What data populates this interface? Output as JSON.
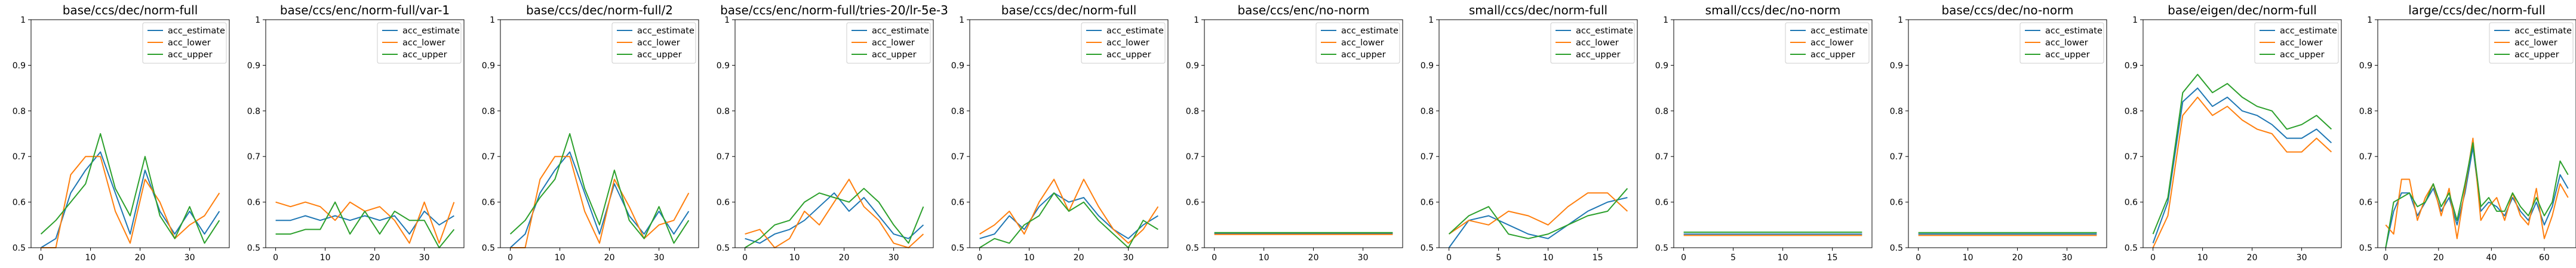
{
  "chart_data": {
    "type": "line",
    "ylim": [
      0.5,
      1.0
    ],
    "yticks": [
      0.5,
      0.6,
      0.7,
      0.8,
      0.9,
      1.0
    ],
    "grid": false,
    "legend_position": "top-right",
    "colors": {
      "acc_estimate": "#1f77b4",
      "acc_lower": "#ff7f0e",
      "acc_upper": "#2ca02c"
    },
    "panels": [
      {
        "title": "base/ccs/dec/norm-full",
        "xlim": [
          -2,
          38
        ],
        "xticks": [
          0,
          10,
          20,
          30
        ],
        "x": [
          0,
          3,
          6,
          9,
          12,
          15,
          18,
          21,
          24,
          27,
          30,
          33,
          36
        ],
        "series": [
          {
            "name": "acc_estimate",
            "values": [
              0.5,
              0.52,
              0.62,
              0.67,
              0.71,
              0.62,
              0.53,
              0.67,
              0.58,
              0.53,
              0.58,
              0.53,
              0.58
            ]
          },
          {
            "name": "acc_lower",
            "values": [
              0.5,
              0.5,
              0.66,
              0.7,
              0.7,
              0.58,
              0.51,
              0.65,
              0.6,
              0.52,
              0.55,
              0.57,
              0.62
            ]
          },
          {
            "name": "acc_upper",
            "values": [
              0.53,
              0.56,
              0.6,
              0.64,
              0.75,
              0.63,
              0.57,
              0.7,
              0.57,
              0.52,
              0.59,
              0.51,
              0.56
            ]
          }
        ]
      },
      {
        "title": "base/ccs/enc/norm-full/var-1",
        "xlim": [
          -2,
          38
        ],
        "xticks": [
          0,
          10,
          20,
          30
        ],
        "x": [
          0,
          3,
          6,
          9,
          12,
          15,
          18,
          21,
          24,
          27,
          30,
          33,
          36
        ],
        "series": [
          {
            "name": "acc_estimate",
            "values": [
              0.56,
              0.56,
              0.57,
              0.56,
              0.57,
              0.56,
              0.57,
              0.56,
              0.57,
              0.53,
              0.58,
              0.55,
              0.57
            ]
          },
          {
            "name": "acc_lower",
            "values": [
              0.6,
              0.59,
              0.6,
              0.59,
              0.56,
              0.6,
              0.58,
              0.59,
              0.56,
              0.51,
              0.6,
              0.51,
              0.6
            ]
          },
          {
            "name": "acc_upper",
            "values": [
              0.53,
              0.53,
              0.54,
              0.54,
              0.6,
              0.53,
              0.58,
              0.53,
              0.58,
              0.56,
              0.56,
              0.5,
              0.54
            ]
          }
        ]
      },
      {
        "title": "base/ccs/dec/norm-full/2",
        "xlim": [
          -2,
          38
        ],
        "xticks": [
          0,
          10,
          20,
          30
        ],
        "x": [
          0,
          3,
          6,
          9,
          12,
          15,
          18,
          21,
          24,
          27,
          30,
          33,
          36
        ],
        "series": [
          {
            "name": "acc_estimate",
            "values": [
              0.5,
              0.53,
              0.62,
              0.67,
              0.71,
              0.62,
              0.53,
              0.64,
              0.57,
              0.53,
              0.58,
              0.53,
              0.58
            ]
          },
          {
            "name": "acc_lower",
            "values": [
              0.5,
              0.5,
              0.65,
              0.7,
              0.7,
              0.58,
              0.51,
              0.65,
              0.59,
              0.52,
              0.55,
              0.56,
              0.62
            ]
          },
          {
            "name": "acc_upper",
            "values": [
              0.53,
              0.56,
              0.61,
              0.65,
              0.75,
              0.63,
              0.55,
              0.67,
              0.56,
              0.52,
              0.59,
              0.51,
              0.56
            ]
          }
        ]
      },
      {
        "title": "base/ccs/enc/norm-full/tries-20/lr-5e-3",
        "xlim": [
          -2,
          38
        ],
        "xticks": [
          0,
          10,
          20,
          30
        ],
        "x": [
          0,
          3,
          6,
          9,
          12,
          15,
          18,
          21,
          24,
          27,
          30,
          33,
          36
        ],
        "series": [
          {
            "name": "acc_estimate",
            "values": [
              0.52,
              0.51,
              0.53,
              0.54,
              0.56,
              0.59,
              0.62,
              0.58,
              0.61,
              0.57,
              0.53,
              0.52,
              0.55
            ]
          },
          {
            "name": "acc_lower",
            "values": [
              0.53,
              0.54,
              0.5,
              0.52,
              0.58,
              0.55,
              0.6,
              0.65,
              0.59,
              0.56,
              0.51,
              0.5,
              0.53
            ]
          },
          {
            "name": "acc_upper",
            "values": [
              0.5,
              0.52,
              0.55,
              0.56,
              0.6,
              0.62,
              0.61,
              0.6,
              0.63,
              0.6,
              0.55,
              0.51,
              0.59
            ]
          }
        ]
      },
      {
        "title": "base/ccs/dec/norm-full",
        "xlim": [
          -2,
          38
        ],
        "xticks": [
          0,
          10,
          20,
          30
        ],
        "x": [
          0,
          3,
          6,
          9,
          12,
          15,
          18,
          21,
          24,
          27,
          30,
          33,
          36
        ],
        "series": [
          {
            "name": "acc_estimate",
            "values": [
              0.52,
              0.53,
              0.57,
              0.54,
              0.59,
              0.62,
              0.6,
              0.61,
              0.57,
              0.54,
              0.52,
              0.55,
              0.57
            ]
          },
          {
            "name": "acc_lower",
            "values": [
              0.53,
              0.55,
              0.58,
              0.53,
              0.6,
              0.65,
              0.58,
              0.65,
              0.59,
              0.54,
              0.51,
              0.54,
              0.59
            ]
          },
          {
            "name": "acc_upper",
            "values": [
              0.5,
              0.52,
              0.51,
              0.55,
              0.57,
              0.62,
              0.58,
              0.6,
              0.56,
              0.53,
              0.5,
              0.56,
              0.54
            ]
          }
        ]
      },
      {
        "title": "base/ccs/enc/no-norm",
        "xlim": [
          -2,
          38
        ],
        "xticks": [
          0,
          10,
          20,
          30
        ],
        "x": [
          0,
          3,
          6,
          9,
          12,
          15,
          18,
          21,
          24,
          27,
          30,
          33,
          36
        ],
        "series": [
          {
            "name": "acc_estimate",
            "values": [
              0.531,
              0.531,
              0.531,
              0.531,
              0.531,
              0.531,
              0.531,
              0.531,
              0.531,
              0.531,
              0.531,
              0.531,
              0.531
            ]
          },
          {
            "name": "acc_lower",
            "values": [
              0.529,
              0.529,
              0.529,
              0.529,
              0.529,
              0.529,
              0.529,
              0.529,
              0.529,
              0.529,
              0.529,
              0.529,
              0.529
            ]
          },
          {
            "name": "acc_upper",
            "values": [
              0.533,
              0.533,
              0.533,
              0.533,
              0.533,
              0.533,
              0.533,
              0.533,
              0.533,
              0.533,
              0.533,
              0.533,
              0.533
            ]
          }
        ]
      },
      {
        "title": "small/ccs/dec/norm-full",
        "xlim": [
          -1,
          19
        ],
        "xticks": [
          0,
          5,
          10,
          15
        ],
        "x": [
          0,
          2,
          4,
          6,
          8,
          10,
          12,
          14,
          16,
          18
        ],
        "series": [
          {
            "name": "acc_estimate",
            "values": [
              0.5,
              0.56,
              0.57,
              0.55,
              0.53,
              0.52,
              0.55,
              0.58,
              0.6,
              0.61
            ]
          },
          {
            "name": "acc_lower",
            "values": [
              0.53,
              0.56,
              0.55,
              0.58,
              0.57,
              0.55,
              0.59,
              0.62,
              0.62,
              0.58
            ]
          },
          {
            "name": "acc_upper",
            "values": [
              0.53,
              0.57,
              0.59,
              0.53,
              0.52,
              0.53,
              0.55,
              0.57,
              0.58,
              0.63
            ]
          }
        ]
      },
      {
        "title": "small/ccs/dec/no-norm",
        "xlim": [
          -1,
          19
        ],
        "xticks": [
          0,
          5,
          10,
          15
        ],
        "x": [
          0,
          2,
          4,
          6,
          8,
          10,
          12,
          14,
          16,
          18
        ],
        "series": [
          {
            "name": "acc_estimate",
            "values": [
              0.53,
              0.53,
              0.53,
              0.53,
              0.53,
              0.53,
              0.53,
              0.53,
              0.53,
              0.53
            ]
          },
          {
            "name": "acc_lower",
            "values": [
              0.527,
              0.527,
              0.527,
              0.527,
              0.527,
              0.527,
              0.527,
              0.527,
              0.527,
              0.527
            ]
          },
          {
            "name": "acc_upper",
            "values": [
              0.534,
              0.534,
              0.534,
              0.534,
              0.534,
              0.534,
              0.534,
              0.534,
              0.534,
              0.534
            ]
          }
        ]
      },
      {
        "title": "base/ccs/dec/no-norm",
        "xlim": [
          -2,
          38
        ],
        "xticks": [
          0,
          10,
          20,
          30
        ],
        "x": [
          0,
          3,
          6,
          9,
          12,
          15,
          18,
          21,
          24,
          27,
          30,
          33,
          36
        ],
        "series": [
          {
            "name": "acc_estimate",
            "values": [
              0.53,
              0.53,
              0.53,
              0.53,
              0.53,
              0.53,
              0.53,
              0.53,
              0.53,
              0.53,
              0.53,
              0.53,
              0.53
            ]
          },
          {
            "name": "acc_lower",
            "values": [
              0.527,
              0.527,
              0.527,
              0.527,
              0.527,
              0.527,
              0.527,
              0.527,
              0.527,
              0.527,
              0.527,
              0.527,
              0.527
            ]
          },
          {
            "name": "acc_upper",
            "values": [
              0.533,
              0.533,
              0.533,
              0.533,
              0.533,
              0.533,
              0.533,
              0.533,
              0.533,
              0.533,
              0.533,
              0.533,
              0.533
            ]
          }
        ]
      },
      {
        "title": "base/eigen/dec/norm-full",
        "xlim": [
          -2,
          38
        ],
        "xticks": [
          0,
          10,
          20,
          30
        ],
        "x": [
          0,
          3,
          6,
          9,
          12,
          15,
          18,
          21,
          24,
          27,
          30,
          33,
          36
        ],
        "series": [
          {
            "name": "acc_estimate",
            "values": [
              0.51,
              0.6,
              0.82,
              0.85,
              0.81,
              0.83,
              0.8,
              0.79,
              0.77,
              0.74,
              0.74,
              0.76,
              0.73
            ]
          },
          {
            "name": "acc_lower",
            "values": [
              0.5,
              0.57,
              0.79,
              0.83,
              0.79,
              0.81,
              0.78,
              0.76,
              0.75,
              0.71,
              0.71,
              0.74,
              0.71
            ]
          },
          {
            "name": "acc_upper",
            "values": [
              0.53,
              0.61,
              0.84,
              0.88,
              0.84,
              0.86,
              0.83,
              0.81,
              0.8,
              0.76,
              0.77,
              0.79,
              0.76
            ]
          }
        ]
      },
      {
        "title": "large/ccs/dec/norm-full",
        "xlim": [
          -3,
          72
        ],
        "xticks": [
          0,
          20,
          40,
          60
        ],
        "x": [
          0,
          3,
          6,
          9,
          12,
          15,
          18,
          21,
          24,
          27,
          30,
          33,
          36,
          39,
          42,
          45,
          48,
          51,
          54,
          57,
          60,
          63,
          66,
          69
        ],
        "series": [
          {
            "name": "acc_estimate",
            "values": [
              0.5,
              0.58,
              0.62,
              0.62,
              0.57,
              0.6,
              0.63,
              0.58,
              0.61,
              0.55,
              0.62,
              0.72,
              0.58,
              0.6,
              0.59,
              0.57,
              0.61,
              0.58,
              0.56,
              0.6,
              0.55,
              0.59,
              0.66,
              0.63
            ]
          },
          {
            "name": "acc_lower",
            "values": [
              0.55,
              0.53,
              0.65,
              0.65,
              0.56,
              0.61,
              0.64,
              0.57,
              0.63,
              0.52,
              0.63,
              0.74,
              0.56,
              0.59,
              0.61,
              0.56,
              0.62,
              0.57,
              0.55,
              0.63,
              0.52,
              0.57,
              0.64,
              0.61
            ]
          },
          {
            "name": "acc_upper",
            "values": [
              0.5,
              0.6,
              0.61,
              0.62,
              0.59,
              0.6,
              0.64,
              0.59,
              0.62,
              0.56,
              0.64,
              0.73,
              0.59,
              0.61,
              0.58,
              0.58,
              0.62,
              0.59,
              0.57,
              0.61,
              0.57,
              0.6,
              0.69,
              0.66
            ]
          }
        ]
      }
    ]
  }
}
